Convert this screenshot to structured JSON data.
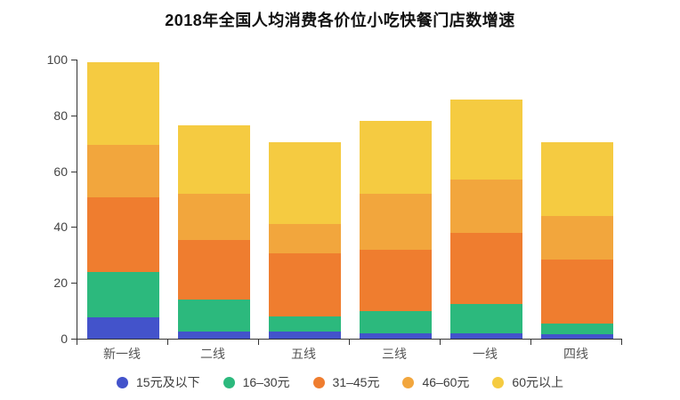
{
  "chart_data": {
    "type": "bar",
    "stacked": true,
    "title": "2018年全国人均消费各价位小吃快餐门店数增速",
    "categories": [
      "新一线",
      "二线",
      "五线",
      "三线",
      "一线",
      "四线"
    ],
    "series": [
      {
        "name": "15元及以下",
        "color": "#4353CB",
        "values": [
          7.5,
          2.5,
          2.5,
          2,
          2,
          1.5
        ]
      },
      {
        "name": "16–30元",
        "color": "#2CB97D",
        "values": [
          16.5,
          11.5,
          5.5,
          8,
          10.5,
          4
        ]
      },
      {
        "name": "31–45元",
        "color": "#EF7D2F",
        "values": [
          26.5,
          21.5,
          22.5,
          22,
          25.5,
          23
        ]
      },
      {
        "name": "46–60元",
        "color": "#F2A63D",
        "values": [
          19,
          16.5,
          10.5,
          20,
          19,
          15.5
        ]
      },
      {
        "name": "60元以上",
        "color": "#F5CB41",
        "values": [
          29.5,
          24.5,
          29.5,
          26,
          28.5,
          26.5
        ]
      }
    ],
    "totals": [
      99,
      76.5,
      70.5,
      78,
      85.5,
      70.5
    ],
    "xlabel": "",
    "ylabel": "",
    "ylim": [
      0,
      100
    ],
    "y_ticks": [
      0,
      20,
      40,
      60,
      80,
      100
    ],
    "grid": false,
    "legend_position": "bottom"
  },
  "style": {
    "axis_color": "#333333",
    "tick_label_color": "#444444",
    "category_label_color": "#555555",
    "title_color": "#111111",
    "background": "#ffffff"
  }
}
